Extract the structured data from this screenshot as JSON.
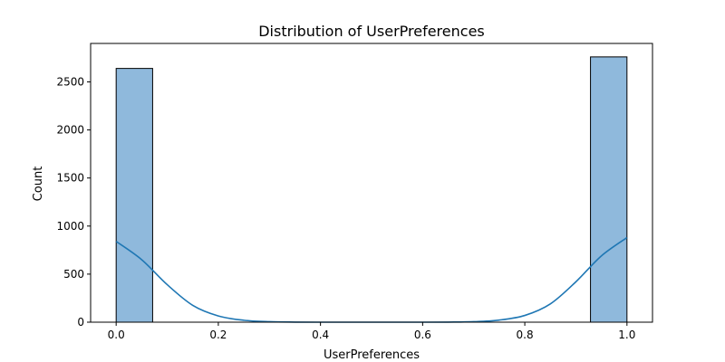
{
  "chart_data": {
    "type": "bar",
    "title": "Distribution of UserPreferences",
    "xlabel": "UserPreferences",
    "ylabel": "Count",
    "xlim": [
      -0.05,
      1.05
    ],
    "ylim": [
      0,
      2900
    ],
    "xticks": [
      0.0,
      0.2,
      0.4,
      0.6,
      0.8,
      1.0
    ],
    "xtick_labels": [
      "0.0",
      "0.2",
      "0.4",
      "0.6",
      "0.8",
      "1.0"
    ],
    "yticks": [
      0,
      500,
      1000,
      1500,
      2000,
      2500
    ],
    "ytick_labels": [
      "0",
      "500",
      "1000",
      "1500",
      "2000",
      "2500"
    ],
    "bins": [
      {
        "x0": 0.0,
        "x1": 0.0714,
        "count": 2640
      },
      {
        "x0": 0.0714,
        "x1": 0.1429,
        "count": 0
      },
      {
        "x0": 0.1429,
        "x1": 0.2143,
        "count": 0
      },
      {
        "x0": 0.2143,
        "x1": 0.2857,
        "count": 0
      },
      {
        "x0": 0.2857,
        "x1": 0.3571,
        "count": 0
      },
      {
        "x0": 0.3571,
        "x1": 0.4286,
        "count": 0
      },
      {
        "x0": 0.4286,
        "x1": 0.5,
        "count": 0
      },
      {
        "x0": 0.5,
        "x1": 0.5714,
        "count": 0
      },
      {
        "x0": 0.5714,
        "x1": 0.6429,
        "count": 0
      },
      {
        "x0": 0.6429,
        "x1": 0.7143,
        "count": 0
      },
      {
        "x0": 0.7143,
        "x1": 0.7857,
        "count": 0
      },
      {
        "x0": 0.7857,
        "x1": 0.8571,
        "count": 0
      },
      {
        "x0": 0.8571,
        "x1": 0.9286,
        "count": 0
      },
      {
        "x0": 0.9286,
        "x1": 1.0,
        "count": 2760
      }
    ],
    "kde": {
      "x": [
        0.0,
        0.05,
        0.1,
        0.15,
        0.2,
        0.25,
        0.3,
        0.35,
        0.4,
        0.45,
        0.5,
        0.55,
        0.6,
        0.65,
        0.7,
        0.75,
        0.8,
        0.85,
        0.9,
        0.95,
        1.0
      ],
      "y": [
        840,
        650,
        390,
        175,
        65,
        20,
        5,
        1,
        0,
        0,
        0,
        0,
        0,
        1,
        5,
        22,
        70,
        190,
        420,
        690,
        880
      ]
    },
    "grid": false,
    "colors": {
      "bar_fill": "#8fb9dc",
      "bar_edge": "#000000",
      "kde_line": "#1f77b4",
      "axes": "#000000"
    }
  }
}
